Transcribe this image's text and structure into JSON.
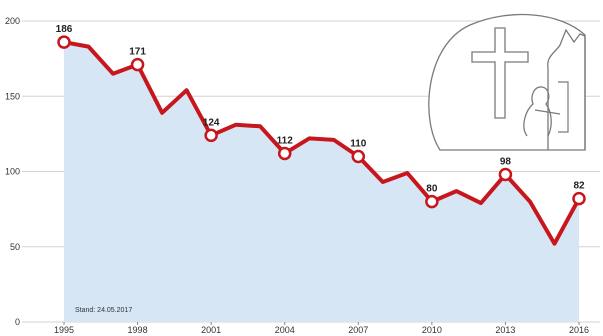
{
  "chart_data": {
    "type": "area",
    "x": [
      1995,
      1996,
      1997,
      1998,
      1999,
      2000,
      2001,
      2002,
      2003,
      2004,
      2005,
      2006,
      2007,
      2008,
      2009,
      2010,
      2011,
      2012,
      2013,
      2014,
      2015,
      2016
    ],
    "values": [
      186,
      183,
      165,
      171,
      139,
      154,
      124,
      131,
      130,
      112,
      122,
      121,
      110,
      93,
      99,
      80,
      87,
      79,
      98,
      80,
      52,
      82
    ],
    "x_tick_labels": [
      "1995",
      "1998",
      "2001",
      "2004",
      "2007",
      "2010",
      "2013",
      "2016"
    ],
    "y_tick_labels": [
      "0",
      "50",
      "100",
      "150",
      "200"
    ],
    "ylim": [
      0,
      200
    ],
    "xlim": [
      1995,
      2016
    ],
    "marked_points": [
      {
        "x": 1995,
        "label": "186"
      },
      {
        "x": 1998,
        "label": "171"
      },
      {
        "x": 2001,
        "label": "124"
      },
      {
        "x": 2004,
        "label": "112"
      },
      {
        "x": 2007,
        "label": "110"
      },
      {
        "x": 2010,
        "label": "80"
      },
      {
        "x": 2013,
        "label": "98"
      },
      {
        "x": 2016,
        "label": "82"
      }
    ],
    "annotation": "Stand: 24.05.2017",
    "grid": true,
    "line_color": "#c8161d",
    "fill_color": "#d6e6f5",
    "title": "",
    "xlabel": "",
    "ylabel": ""
  },
  "decoration": {
    "icon": "church-cross-praying-figure-icon"
  }
}
